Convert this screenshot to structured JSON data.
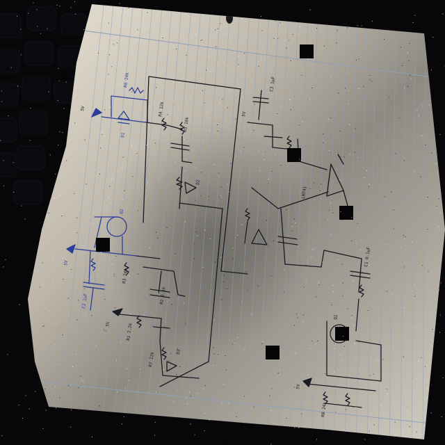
{
  "photo": {
    "subject": "hand-drawn circuit schematic on lined notebook paper",
    "background": "dark keyboard surface",
    "colors": {
      "paper_light": "#e9e3d6",
      "paper_shadow": "#8e8a82",
      "ruled_line": "#8fa0b8",
      "pen_black": "#1a1a22",
      "pen_blue": "#2b3e9a",
      "redaction": "#050505"
    }
  },
  "supply_labels": {
    "supply_left_top": "5V",
    "supply_left_mid": "5V",
    "supply_left_low": "5V",
    "supply_bottom_right": "5V",
    "supply_center": "5V"
  },
  "components": {
    "r6": "R6 24k",
    "r4": "R4 12k",
    "r5": "R5 10k",
    "c3": "C3 1µF",
    "opamp": "LM741",
    "r3": "R3 24k",
    "r2": "R2 0.1k",
    "r1": "R1 2.2k",
    "r7": "R7 12k",
    "r8": "R8 24k",
    "c1": "C1 0.1µF",
    "c2": "C2 1µF",
    "q1": "Q1",
    "q2": "Q2",
    "d1": "D1",
    "d2": "D2",
    "d3": "D3"
  }
}
